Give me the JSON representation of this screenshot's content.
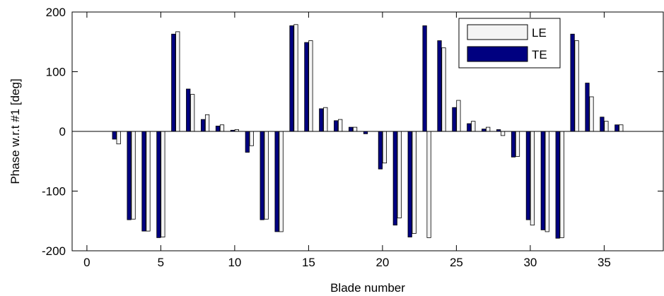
{
  "chart_data": {
    "type": "bar",
    "xlabel": "Blade number",
    "ylabel": "Phase w.r.t #1 [deg]",
    "xlim": [
      -1,
      39
    ],
    "ylim": [
      -200,
      200
    ],
    "xticks": [
      0,
      5,
      10,
      15,
      20,
      25,
      30,
      35
    ],
    "yticks": [
      -200,
      -100,
      0,
      100,
      200
    ],
    "grid": false,
    "legend_position": "top-right",
    "x": [
      1,
      2,
      3,
      4,
      5,
      6,
      7,
      8,
      9,
      10,
      11,
      12,
      13,
      14,
      15,
      16,
      17,
      18,
      19,
      20,
      21,
      22,
      23,
      24,
      25,
      26,
      27,
      28,
      29,
      30,
      31,
      32,
      33,
      34,
      35,
      36
    ],
    "series": [
      {
        "name": "LE",
        "color": "#f4f4f4",
        "values": [
          0,
          -21,
          -147,
          -167,
          -177,
          167,
          62,
          28,
          11,
          3,
          -24,
          -147,
          -168,
          179,
          152,
          40,
          20,
          7,
          0,
          -53,
          -145,
          -171,
          -178,
          140,
          52,
          17,
          7,
          -7,
          -42,
          -157,
          -168,
          -178,
          152,
          58,
          17,
          11
        ]
      },
      {
        "name": "TE",
        "color": "#000080",
        "values": [
          0,
          -13,
          -148,
          -167,
          -178,
          163,
          71,
          20,
          9,
          2,
          -35,
          -148,
          -168,
          177,
          149,
          38,
          18,
          7,
          -4,
          -63,
          -157,
          -177,
          177,
          152,
          40,
          13,
          4,
          3,
          -43,
          -148,
          -165,
          -179,
          163,
          81,
          24,
          11
        ]
      }
    ]
  }
}
